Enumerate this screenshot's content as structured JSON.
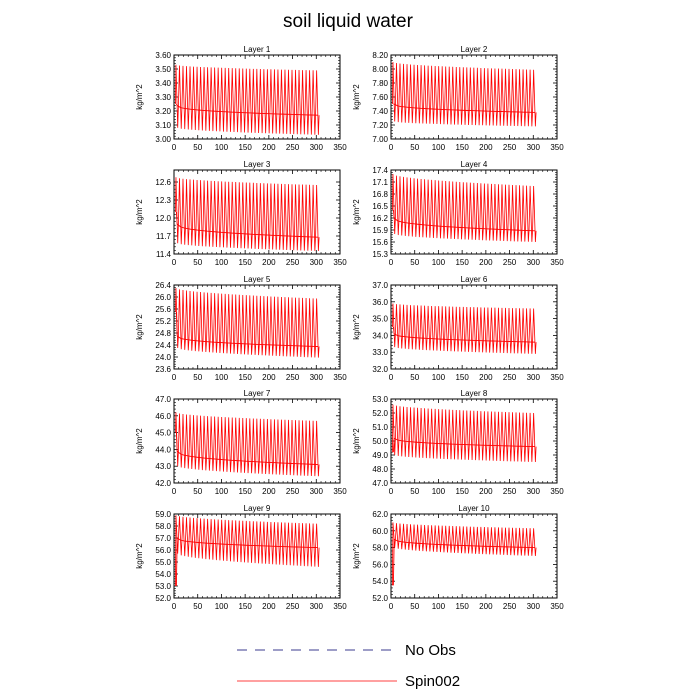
{
  "figure": {
    "title": "soil liquid water",
    "legend": [
      {
        "label": "No Obs",
        "color": "#3b3b8f",
        "dash": "dashed"
      },
      {
        "label": "Spin002",
        "color": "#ff0000",
        "dash": "solid"
      }
    ]
  },
  "chart_data": [
    {
      "type": "line",
      "title": "Layer 1",
      "ylabel": "kg/m^2",
      "xlim": [
        0,
        350
      ],
      "ylim": [
        3.0,
        3.6
      ],
      "xticks": [
        "0",
        "50",
        "100",
        "150",
        "200",
        "250",
        "300",
        "350"
      ],
      "yticks": [
        "3.00",
        "3.10",
        "3.20",
        "3.30",
        "3.40",
        "3.50",
        "3.60"
      ],
      "series": [
        {
          "name": "Spin002",
          "color": "#ff0000",
          "x_range": [
            3,
            307
          ],
          "cycles": 41,
          "start": 3.25,
          "upper": [
            3.53,
            3.49
          ],
          "lower": [
            3.08,
            3.03
          ],
          "trend": [
            3.24,
            3.17
          ]
        }
      ]
    },
    {
      "type": "line",
      "title": "Layer 2",
      "ylabel": "kg/m^2",
      "xlim": [
        0,
        350
      ],
      "ylim": [
        7.0,
        8.2
      ],
      "xticks": [
        "0",
        "50",
        "100",
        "150",
        "200",
        "250",
        "300",
        "350"
      ],
      "yticks": [
        "7.00",
        "7.20",
        "7.40",
        "7.60",
        "7.80",
        "8.00",
        "8.20"
      ],
      "series": [
        {
          "name": "Spin002",
          "color": "#ff0000",
          "x_range": [
            3,
            307
          ],
          "cycles": 41,
          "start": 7.5,
          "upper": [
            8.1,
            7.99
          ],
          "lower": [
            7.25,
            7.18
          ],
          "trend": [
            7.5,
            7.38
          ]
        }
      ]
    },
    {
      "type": "line",
      "title": "Layer 3",
      "ylabel": "kg/m^2",
      "xlim": [
        0,
        350
      ],
      "ylim": [
        11.4,
        12.8
      ],
      "xticks": [
        "0",
        "50",
        "100",
        "150",
        "200",
        "250",
        "300",
        "350"
      ],
      "yticks": [
        "11.4",
        "11.7",
        "12.0",
        "12.3",
        "12.6"
      ],
      "series": [
        {
          "name": "Spin002",
          "color": "#ff0000",
          "x_range": [
            3,
            307
          ],
          "cycles": 41,
          "start": 12.1,
          "upper": [
            12.68,
            12.55
          ],
          "lower": [
            11.58,
            11.45
          ],
          "trend": [
            11.9,
            11.68
          ]
        }
      ]
    },
    {
      "type": "line",
      "title": "Layer 4",
      "ylabel": "kg/m^2",
      "xlim": [
        0,
        350
      ],
      "ylim": [
        15.3,
        17.4
      ],
      "xticks": [
        "0",
        "50",
        "100",
        "150",
        "200",
        "250",
        "300",
        "350"
      ],
      "yticks": [
        "15.3",
        "15.6",
        "15.9",
        "16.2",
        "16.5",
        "16.8",
        "17.1",
        "17.4"
      ],
      "series": [
        {
          "name": "Spin002",
          "color": "#ff0000",
          "x_range": [
            3,
            307
          ],
          "cycles": 41,
          "start": 16.4,
          "upper": [
            17.3,
            17.0
          ],
          "lower": [
            15.8,
            15.6
          ],
          "trend": [
            16.2,
            15.88
          ]
        }
      ]
    },
    {
      "type": "line",
      "title": "Layer 5",
      "ylabel": "kg/m^2",
      "xlim": [
        0,
        350
      ],
      "ylim": [
        23.6,
        26.4
      ],
      "xticks": [
        "0",
        "50",
        "100",
        "150",
        "200",
        "250",
        "300",
        "350"
      ],
      "yticks": [
        "23.6",
        "24.0",
        "24.4",
        "24.8",
        "25.2",
        "25.6",
        "26.0",
        "26.4"
      ],
      "series": [
        {
          "name": "Spin002",
          "color": "#ff0000",
          "x_range": [
            3,
            307
          ],
          "cycles": 41,
          "start": 25.5,
          "upper": [
            26.3,
            25.95
          ],
          "lower": [
            24.3,
            23.98
          ],
          "trend": [
            24.7,
            24.35
          ]
        }
      ]
    },
    {
      "type": "line",
      "title": "Layer 6",
      "ylabel": "kg/m^2",
      "xlim": [
        0,
        350
      ],
      "ylim": [
        32.0,
        37.0
      ],
      "xticks": [
        "0",
        "50",
        "100",
        "150",
        "200",
        "250",
        "300",
        "350"
      ],
      "yticks": [
        "32.0",
        "33.0",
        "34.0",
        "35.0",
        "36.0",
        "37.0"
      ],
      "series": [
        {
          "name": "Spin002",
          "color": "#ff0000",
          "x_range": [
            3,
            307
          ],
          "cycles": 41,
          "start": 34.5,
          "upper": [
            35.9,
            35.6
          ],
          "lower": [
            33.3,
            32.9
          ],
          "trend": [
            34.1,
            33.6
          ]
        }
      ]
    },
    {
      "type": "line",
      "title": "Layer 7",
      "ylabel": "kg/m^2",
      "xlim": [
        0,
        350
      ],
      "ylim": [
        42.0,
        47.0
      ],
      "xticks": [
        "0",
        "50",
        "100",
        "150",
        "200",
        "250",
        "300",
        "350"
      ],
      "yticks": [
        "42.0",
        "43.0",
        "44.0",
        "45.0",
        "46.0",
        "47.0"
      ],
      "series": [
        {
          "name": "Spin002",
          "color": "#ff0000",
          "x_range": [
            3,
            307
          ],
          "cycles": 41,
          "start": 45.0,
          "upper": [
            46.2,
            45.7
          ],
          "lower": [
            43.0,
            42.4
          ],
          "trend": [
            43.9,
            43.1
          ]
        }
      ]
    },
    {
      "type": "line",
      "title": "Layer 8",
      "ylabel": "kg/m^2",
      "xlim": [
        0,
        350
      ],
      "ylim": [
        47.0,
        53.0
      ],
      "xticks": [
        "0",
        "50",
        "100",
        "150",
        "200",
        "250",
        "300",
        "350"
      ],
      "yticks": [
        "47.0",
        "48.0",
        "49.0",
        "50.0",
        "51.0",
        "52.0",
        "53.0"
      ],
      "series": [
        {
          "name": "Spin002",
          "color": "#ff0000",
          "x_range": [
            3,
            307
          ],
          "cycles": 41,
          "start": 49.2,
          "upper": [
            52.6,
            52.0
          ],
          "lower": [
            49.0,
            48.5
          ],
          "trend": [
            50.2,
            49.6
          ]
        }
      ]
    },
    {
      "type": "line",
      "title": "Layer 9",
      "ylabel": "kg/m^2",
      "xlim": [
        0,
        350
      ],
      "ylim": [
        52.0,
        59.0
      ],
      "xticks": [
        "0",
        "50",
        "100",
        "150",
        "200",
        "250",
        "300",
        "350"
      ],
      "yticks": [
        "52.0",
        "53.0",
        "54.0",
        "55.0",
        "56.0",
        "57.0",
        "58.0",
        "59.0"
      ],
      "series": [
        {
          "name": "Spin002",
          "color": "#ff0000",
          "x_range": [
            3,
            307
          ],
          "cycles": 41,
          "start": 53.0,
          "upper": [
            58.9,
            58.2
          ],
          "lower": [
            55.7,
            54.6
          ],
          "trend": [
            57.0,
            56.2
          ]
        }
      ]
    },
    {
      "type": "line",
      "title": "Layer 10",
      "ylabel": "kg/m^2",
      "xlim": [
        0,
        350
      ],
      "ylim": [
        52.0,
        62.0
      ],
      "xticks": [
        "0",
        "50",
        "100",
        "150",
        "200",
        "250",
        "300",
        "350"
      ],
      "yticks": [
        "52.0",
        "54.0",
        "56.0",
        "58.0",
        "60.0",
        "62.0"
      ],
      "series": [
        {
          "name": "Spin002",
          "color": "#ff0000",
          "x_range": [
            3,
            307
          ],
          "cycles": 41,
          "start": 53.5,
          "upper": [
            61.0,
            60.3
          ],
          "lower": [
            58.0,
            57.0
          ],
          "trend": [
            59.0,
            58.0
          ]
        }
      ]
    }
  ]
}
